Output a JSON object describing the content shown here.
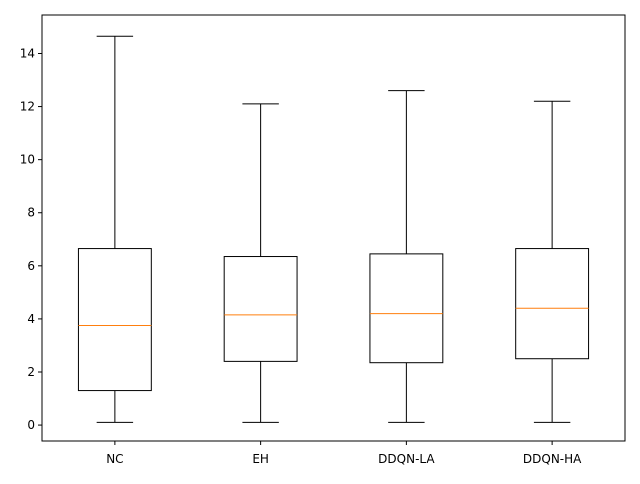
{
  "chart_data": {
    "type": "box",
    "title": "",
    "xlabel": "",
    "ylabel": "",
    "categories": [
      "NC",
      "EH",
      "DDQN-LA",
      "DDQN-HA"
    ],
    "boxes": [
      {
        "name": "NC",
        "whisker_low": 0.1,
        "q1": 1.3,
        "median": 3.75,
        "q3": 6.65,
        "whisker_high": 14.65
      },
      {
        "name": "EH",
        "whisker_low": 0.1,
        "q1": 2.4,
        "median": 4.15,
        "q3": 6.35,
        "whisker_high": 12.1
      },
      {
        "name": "DDQN-LA",
        "whisker_low": 0.1,
        "q1": 2.35,
        "median": 4.2,
        "q3": 6.45,
        "whisker_high": 12.6
      },
      {
        "name": "DDQN-HA",
        "whisker_low": 0.1,
        "q1": 2.5,
        "median": 4.4,
        "q3": 6.65,
        "whisker_high": 12.2
      }
    ],
    "ylim": [
      -0.6,
      15.45
    ],
    "yticks": [
      0,
      2,
      4,
      6,
      8,
      10,
      12,
      14
    ],
    "grid": false,
    "colors": {
      "box": "#000000",
      "median": "#ff7f0e",
      "axes": "#000000",
      "background": "#ffffff"
    }
  }
}
